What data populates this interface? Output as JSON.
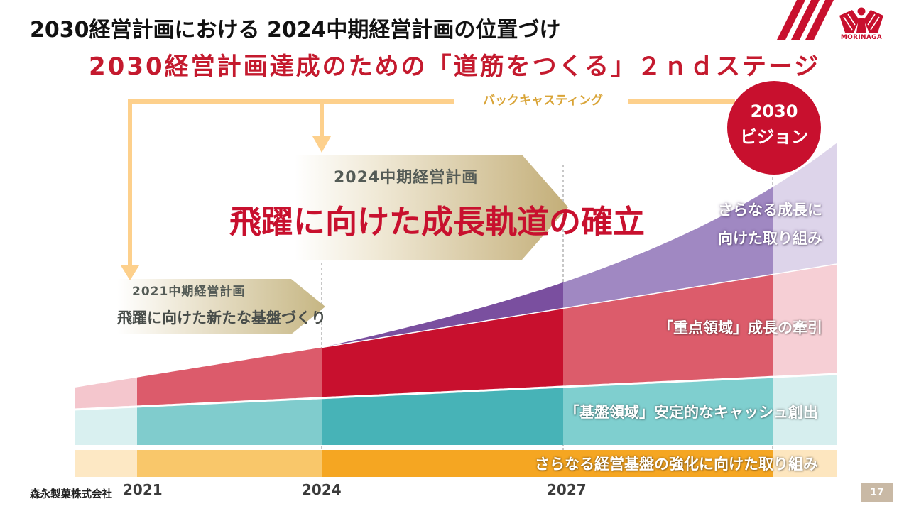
{
  "header": {
    "title": "2030経営計画における 2024中期経営計画の位置づけ",
    "subtitle": "2030経営計画達成のための「道筋をつくる」２ｎｄステージ"
  },
  "logo": {
    "icon": "morinaga-angel-mark",
    "text": "MORINAGA",
    "color": "#c8102e"
  },
  "backcasting": {
    "label": "バックキャスティング",
    "arrow_color": "#fdd08c"
  },
  "vision": {
    "year": "2030",
    "label": "ビジョン",
    "color": "#c8102e"
  },
  "plans": [
    {
      "name": "2021中期経営計画",
      "theme": "飛躍に向けた新たな基盤づくり"
    },
    {
      "name": "2024中期経営計画",
      "theme": "飛躍に向けた成長軌道の確立"
    }
  ],
  "bands": [
    {
      "label_lines": [
        "さらなる成長に",
        "向けた取り組み"
      ],
      "fills": [
        "#7a4f9f",
        "#a088c2",
        "#ddd4ea"
      ]
    },
    {
      "label": "「重点領域」成長の牽引",
      "fills": [
        "#f4c6cd",
        "#dc5b6b",
        "#c8102e",
        "#dc5c6b",
        "#f6cfd5"
      ]
    },
    {
      "label": "「基盤領域」安定的なキャッシュ創出",
      "fills": [
        "#d9f0f0",
        "#80cccd",
        "#47b3b7",
        "#7fcfcf",
        "#d6eeee"
      ]
    },
    {
      "label": "さらなる経営基盤の強化に向けた取り組み",
      "fills": [
        "#fde8c4",
        "#f9c76a",
        "#f5a622",
        "#f5a622",
        "#fde6bf"
      ]
    }
  ],
  "timeline": {
    "years": [
      "2021",
      "2024",
      "2027"
    ]
  },
  "footer": {
    "company": "森永製菓株式会社",
    "page_number": "17"
  }
}
